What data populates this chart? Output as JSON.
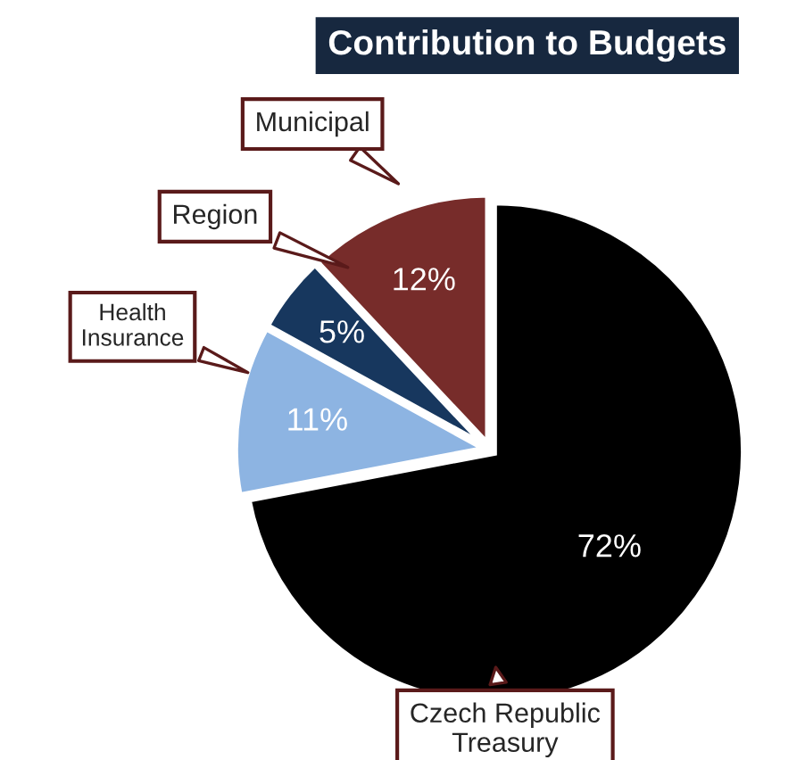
{
  "chart_data": {
    "type": "pie",
    "title": "Contribution to Budgets",
    "categories": [
      "Czech Republic\nTreasury",
      "Health\nInsurance",
      "Region",
      "Municipal"
    ],
    "values": [
      72,
      11,
      5,
      12
    ],
    "colors": [
      "#000000",
      "#8db4e2",
      "#17375e",
      "#772c2a"
    ],
    "value_labels": [
      "72%",
      "11%",
      "5%",
      "12%"
    ],
    "legend": false
  }
}
